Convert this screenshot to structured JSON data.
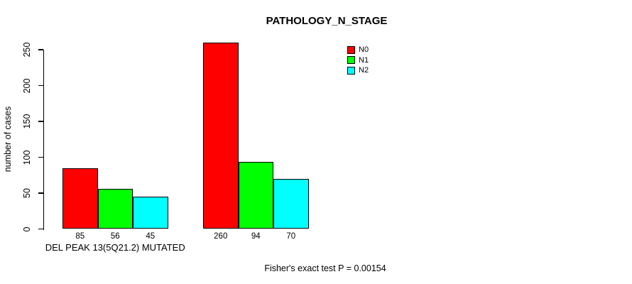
{
  "chart_data": {
    "type": "bar",
    "title": "PATHOLOGY_N_STAGE",
    "ylabel": "number of cases",
    "xlabel": "",
    "ylim": [
      0,
      260
    ],
    "yticks": [
      0,
      50,
      100,
      150,
      200,
      250
    ],
    "grid": false,
    "legend_position": "top-right",
    "categories": [
      "DEL PEAK 13(5Q21.2) MUTATED",
      ""
    ],
    "series": [
      {
        "name": "N0",
        "color": "#ff0000",
        "values": [
          85,
          260
        ]
      },
      {
        "name": "N1",
        "color": "#00ff00",
        "values": [
          56,
          94
        ]
      },
      {
        "name": "N2",
        "color": "#00ffff",
        "values": [
          45,
          70
        ]
      }
    ],
    "annotation": "Fisher's exact test P = 0.00154",
    "colors": {
      "axis": "#000000",
      "background": "#ffffff"
    }
  }
}
